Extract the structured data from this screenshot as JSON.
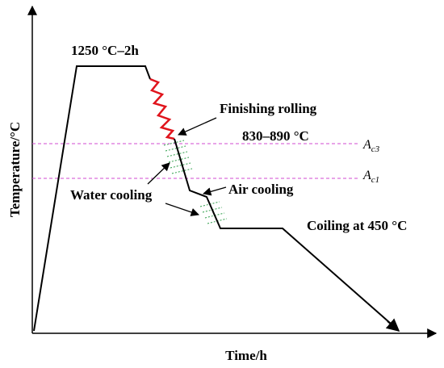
{
  "axes": {
    "y_label": "Temperature/°C",
    "x_label": "Time/h"
  },
  "annotations": {
    "hold": "1250 °C–2h",
    "finishing_title": "Finishing rolling",
    "finishing_range": "830–890 °C",
    "water": "Water cooling",
    "air": "Air cooling",
    "coiling": "Coiling at 450 °C"
  },
  "lines": {
    "ac3": {
      "main": "A",
      "sub": "c3"
    },
    "ac1": {
      "main": "A",
      "sub": "c1"
    }
  }
}
